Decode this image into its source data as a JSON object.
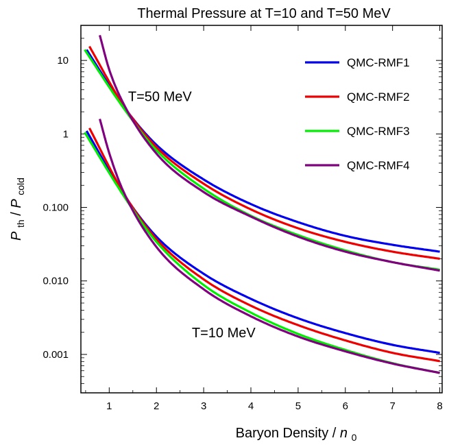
{
  "chart_data": {
    "type": "line",
    "title": "Thermal Pressure at T=10 and T=50 MeV",
    "xlabel": {
      "main": "Baryon Density /",
      "var": "n",
      "sub": "0"
    },
    "ylabel": {
      "var1": "P",
      "sub1": "th",
      "slash": "/",
      "var2": "P",
      "sub2": "cold"
    },
    "xlim": [
      0.4,
      8.05
    ],
    "ylim": [
      0.0003,
      30
    ],
    "yscale": "log",
    "xticks": [
      {
        "value": 1,
        "label": "1"
      },
      {
        "value": 2,
        "label": "2"
      },
      {
        "value": 3,
        "label": "3"
      },
      {
        "value": 4,
        "label": "4"
      },
      {
        "value": 5,
        "label": "5"
      },
      {
        "value": 6,
        "label": "6"
      },
      {
        "value": 7,
        "label": "7"
      },
      {
        "value": 8,
        "label": "8"
      }
    ],
    "yticks": [
      {
        "value": 10,
        "label": "10"
      },
      {
        "value": 1,
        "label": "1"
      },
      {
        "value": 0.1,
        "label": "0.100"
      },
      {
        "value": 0.01,
        "label": "0.010"
      },
      {
        "value": 0.001,
        "label": "0.001"
      }
    ],
    "legend_position": "top-right",
    "annotations": [
      {
        "text": "T=50 MeV",
        "x": 1.4,
        "y": 2.8
      },
      {
        "text": "T=10 MeV",
        "x": 2.75,
        "y": 0.0017
      }
    ],
    "series": [
      {
        "name": "QMC-RMF1",
        "color": "#0000ee",
        "temperature": "T=50 MeV",
        "x": [
          0.52,
          1.3,
          2,
          3,
          4,
          5,
          6,
          7,
          8
        ],
        "y": [
          14,
          2.38,
          0.71,
          0.24,
          0.111,
          0.063,
          0.041,
          0.031,
          0.025
        ]
      },
      {
        "name": "QMC-RMF2",
        "color": "#ee0000",
        "temperature": "T=50 MeV",
        "x": [
          0.58,
          1.3,
          2,
          3,
          4,
          5,
          6,
          7,
          8
        ],
        "y": [
          15.5,
          2.45,
          0.66,
          0.21,
          0.094,
          0.052,
          0.034,
          0.025,
          0.02
        ]
      },
      {
        "name": "QMC-RMF3",
        "color": "#00ee00",
        "temperature": "T=50 MeV",
        "x": [
          0.48,
          1.3,
          2,
          3,
          4,
          5,
          6,
          7,
          8
        ],
        "y": [
          14,
          2.27,
          0.6,
          0.18,
          0.077,
          0.042,
          0.026,
          0.018,
          0.0142
        ]
      },
      {
        "name": "QMC-RMF4",
        "color": "#800080",
        "temperature": "T=50 MeV",
        "x": [
          0.8,
          1,
          1.3,
          2,
          3,
          4,
          5,
          6,
          7,
          8
        ],
        "y": [
          22,
          7.5,
          2.6,
          0.54,
          0.162,
          0.075,
          0.04,
          0.025,
          0.018,
          0.0138
        ]
      },
      {
        "name": "QMC-RMF1",
        "color": "#0000ee",
        "temperature": "T=10 MeV",
        "x": [
          0.52,
          1.3,
          2,
          3,
          4,
          5,
          6,
          7,
          8
        ],
        "y": [
          1.1,
          0.153,
          0.04,
          0.0125,
          0.0057,
          0.0031,
          0.00195,
          0.00135,
          0.00105
        ]
      },
      {
        "name": "QMC-RMF2",
        "color": "#ee0000",
        "temperature": "T=10 MeV",
        "x": [
          0.58,
          1.3,
          2,
          3,
          4,
          5,
          6,
          7,
          8
        ],
        "y": [
          1.2,
          0.158,
          0.037,
          0.0105,
          0.0046,
          0.0025,
          0.00155,
          0.00105,
          0.00081
        ]
      },
      {
        "name": "QMC-RMF3",
        "color": "#00ee00",
        "temperature": "T=10 MeV",
        "x": [
          0.48,
          1.3,
          2,
          3,
          4,
          5,
          6,
          7,
          8
        ],
        "y": [
          1.05,
          0.146,
          0.034,
          0.0088,
          0.0037,
          0.0019,
          0.00115,
          0.00076,
          0.00056
        ]
      },
      {
        "name": "QMC-RMF4",
        "color": "#800080",
        "temperature": "T=10 MeV",
        "x": [
          0.8,
          1,
          1.3,
          2,
          3,
          4,
          5,
          6,
          7,
          8
        ],
        "y": [
          1.6,
          0.55,
          0.165,
          0.029,
          0.0077,
          0.0033,
          0.00175,
          0.0011,
          0.00075,
          0.00056
        ]
      }
    ]
  }
}
